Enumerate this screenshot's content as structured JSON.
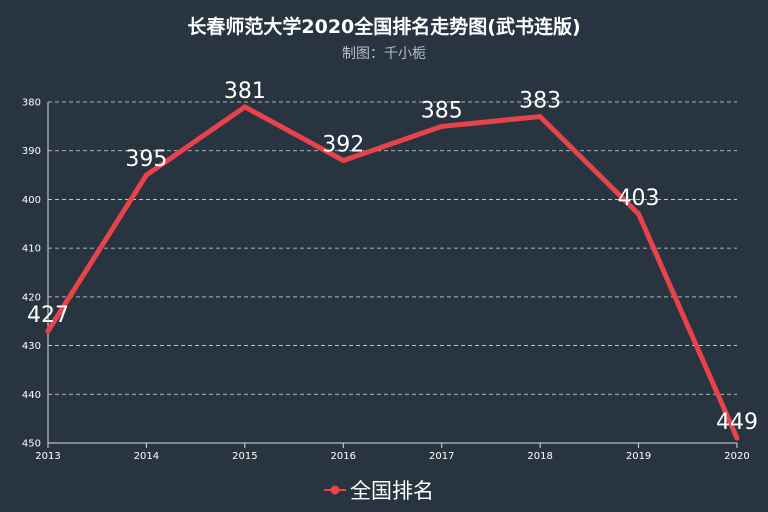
{
  "chart_data": {
    "type": "line",
    "title": "长春师范大学2020全国排名走势图(武书连版)",
    "subtitle": "制图：千小栀",
    "x": [
      "2013",
      "2014",
      "2015",
      "2016",
      "2017",
      "2018",
      "2019",
      "2020"
    ],
    "series": [
      {
        "name": "全国排名",
        "values": [
          427,
          395,
          381,
          392,
          385,
          383,
          403,
          449
        ],
        "color": "#e8424a"
      }
    ],
    "y_ticks": [
      380,
      390,
      400,
      410,
      420,
      430,
      440,
      450
    ],
    "ylim": [
      380,
      450
    ],
    "y_inverted": true,
    "grid": true,
    "legend_position": "bottom-center"
  },
  "colors": {
    "background": "#283440",
    "series": "#e8424a"
  }
}
